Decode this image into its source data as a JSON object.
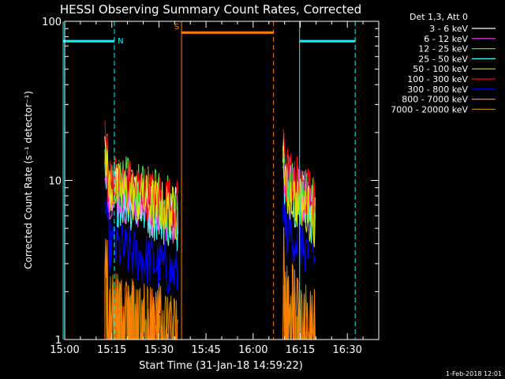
{
  "chart_data": {
    "type": "line",
    "title": "HESSI Observing Summary Count Rates, Corrected",
    "xlabel": "Start Time (31-Jan-18 14:59:22)",
    "ylabel": "Corrected Count Rate (s⁻¹ detector⁻¹)",
    "y_scale": "log",
    "ylim": [
      1,
      100
    ],
    "xlim_minutes": [
      0,
      100
    ],
    "x_ticks": [
      {
        "label": "15:00",
        "t": 0
      },
      {
        "label": "15:15",
        "t": 15
      },
      {
        "label": "15:30",
        "t": 30
      },
      {
        "label": "15:45",
        "t": 45
      },
      {
        "label": "16:00",
        "t": 60
      },
      {
        "label": "16:15",
        "t": 75
      },
      {
        "label": "16:30",
        "t": 90
      }
    ],
    "y_ticks": [
      {
        "label": "1",
        "v": 1
      },
      {
        "label": "10",
        "v": 10
      },
      {
        "label": "100",
        "v": 100
      }
    ],
    "legend_title": "Det 1,3, Att 0",
    "legend_placement": "right",
    "series": [
      {
        "name": "3 - 6 keV",
        "color": "#ffffff"
      },
      {
        "name": "6 - 12 keV",
        "color": "#ff40ff"
      },
      {
        "name": "12 - 25 keV",
        "color": "#40e040"
      },
      {
        "name": "25 - 50 keV",
        "color": "#40ffff"
      },
      {
        "name": "50 - 100 keV",
        "color": "#e0e000"
      },
      {
        "name": "100 - 300 keV",
        "color": "#ff0000"
      },
      {
        "name": "300 - 800 keV",
        "color": "#0000ff"
      },
      {
        "name": "800 - 7000 keV",
        "color": "#ff8000"
      },
      {
        "name": "7000 - 20000 keV",
        "color": "#b08000"
      }
    ],
    "segments": [
      {
        "start": 12.8,
        "end": 36.2,
        "levels": {
          "3 - 6 keV": 7.5,
          "6 - 12 keV": 7.0,
          "12 - 25 keV": 8.5,
          "25 - 50 keV": 6.5,
          "50 - 100 keV": 7.5,
          "100 - 300 keV": 8.5,
          "300 - 800 keV": 3.2,
          "800 - 7000 keV": 1.8,
          "7000 - 20000 keV": 1.6
        }
      },
      {
        "start": 69.5,
        "end": 79.8,
        "levels": {
          "3 - 6 keV": 8.0,
          "6 - 12 keV": 8.5,
          "12 - 25 keV": 8.5,
          "25 - 50 keV": 7.0,
          "50 - 100 keV": 7.0,
          "100 - 300 keV": 9.0,
          "300 - 800 keV": 4.0,
          "800 - 7000 keV": 2.0,
          "7000 - 20000 keV": 1.8
        }
      }
    ],
    "bars": [
      {
        "label": "N",
        "color": "#00ffff",
        "start": -0.5,
        "end": 15.8,
        "v": 75
      },
      {
        "label": "S",
        "color": "#ff8000",
        "start": 37.2,
        "end": 66.5,
        "v": 85
      },
      {
        "label": "",
        "color": "#00ffff",
        "start": 74.8,
        "end": 92.5,
        "v": 75
      }
    ],
    "vlines": [
      {
        "t": -0.5,
        "color": "#00ffff",
        "style": "solid"
      },
      {
        "t": 15.8,
        "color": "#00ffff",
        "style": "dashed"
      },
      {
        "t": 37.2,
        "color": "#ff8000",
        "style": "solid"
      },
      {
        "t": 66.5,
        "color": "#ff8000",
        "style": "dashed"
      },
      {
        "t": 74.8,
        "color": "#00ffff",
        "style": "solid"
      },
      {
        "t": 92.5,
        "color": "#00ffff",
        "style": "dashed"
      }
    ],
    "footer_date": "1-Feb-2018 12:01"
  }
}
